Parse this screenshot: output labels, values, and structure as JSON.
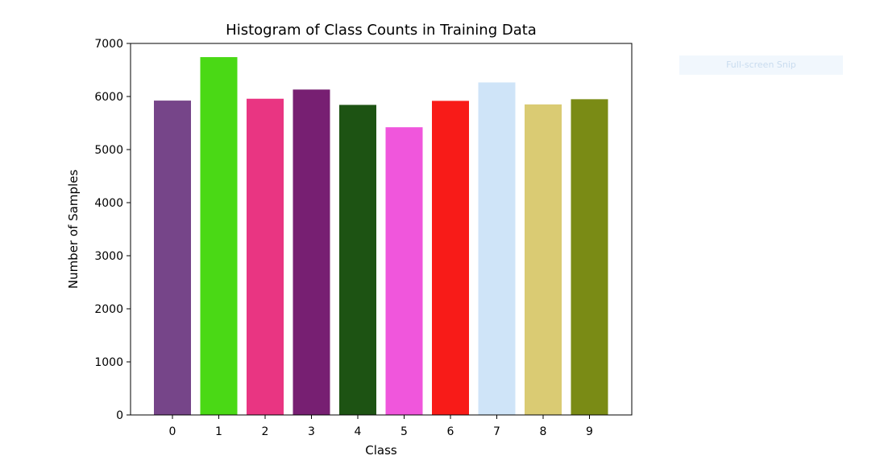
{
  "snip_overlay": {
    "label": "Full-screen Snip"
  },
  "chart_data": {
    "type": "bar",
    "title": "Histogram of Class Counts in Training Data",
    "xlabel": "Class",
    "ylabel": "Number of Samples",
    "categories": [
      "0",
      "1",
      "2",
      "3",
      "4",
      "5",
      "6",
      "7",
      "8",
      "9"
    ],
    "values": [
      5923,
      6742,
      5958,
      6131,
      5842,
      5421,
      5918,
      6265,
      5851,
      5949
    ],
    "colors": [
      "#764589",
      "#4ad915",
      "#e93582",
      "#771f72",
      "#1d5313",
      "#f056dc",
      "#f81b18",
      "#cfe4f8",
      "#dacb73",
      "#7a8b15"
    ],
    "ylim": [
      0,
      7000
    ],
    "yticks": [
      0,
      1000,
      2000,
      3000,
      4000,
      5000,
      6000,
      7000
    ],
    "grid": false,
    "legend": "none"
  }
}
